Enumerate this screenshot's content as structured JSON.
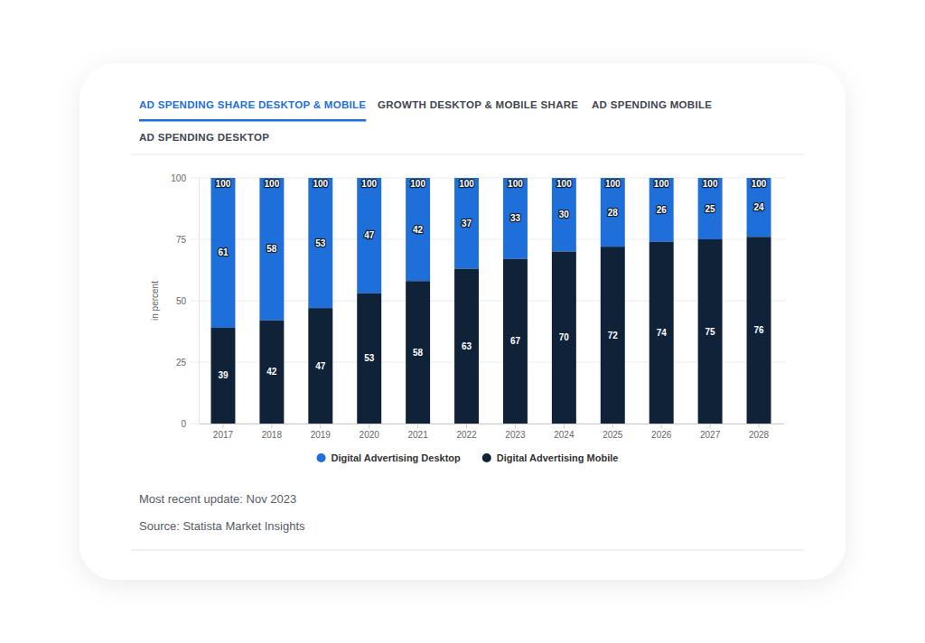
{
  "chart_data": {
    "type": "bar",
    "tabs": [
      "AD SPENDING SHARE DESKTOP & MOBILE",
      "GROWTH DESKTOP & MOBILE SHARE",
      "AD SPENDING MOBILE",
      "AD SPENDING DESKTOP"
    ],
    "y_label": "in percent",
    "categories": [
      "2017",
      "2018",
      "2019",
      "2020",
      "2021",
      "2022",
      "2023",
      "2024",
      "2025",
      "2026",
      "2027",
      "2028"
    ],
    "series": [
      {
        "name": "Digital Advertising Desktop",
        "color": "#1f6fdb",
        "values": [
          61,
          58,
          53,
          47,
          42,
          37,
          33,
          30,
          28,
          26,
          25,
          24
        ]
      },
      {
        "name": "Digital Advertising Mobile",
        "color": "#0f2238",
        "values": [
          39,
          42,
          47,
          53,
          58,
          63,
          67,
          70,
          72,
          74,
          75,
          76
        ]
      }
    ],
    "totals": [
      100,
      100,
      100,
      100,
      100,
      100,
      100,
      100,
      100,
      100,
      100,
      100
    ],
    "ylim": [
      0,
      100
    ],
    "yticks": [
      0,
      25,
      50,
      75,
      100
    ],
    "grid": true,
    "stacked": true,
    "data_labels": true,
    "legend": "bottom",
    "notes": [
      "Most recent update: Nov 2023",
      "Source: Statista Market Insights"
    ]
  }
}
